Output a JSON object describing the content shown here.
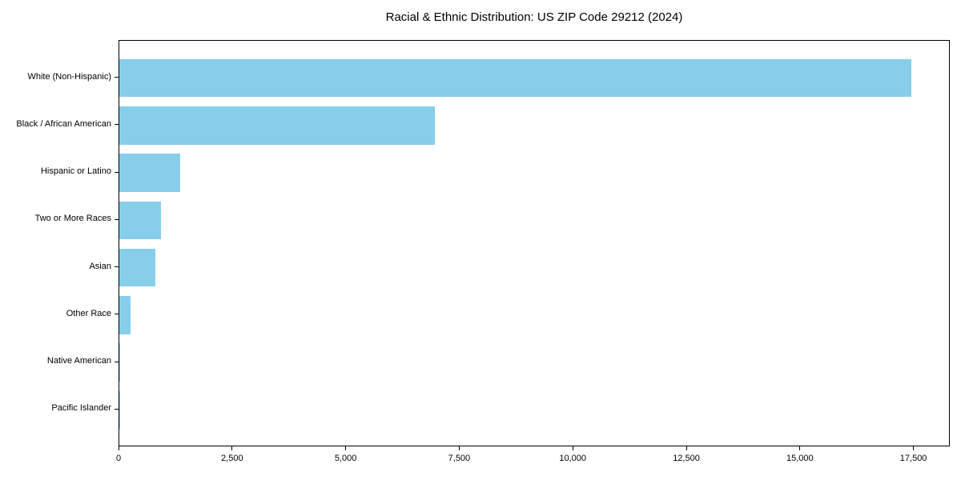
{
  "chart_data": {
    "type": "bar",
    "orientation": "horizontal",
    "title": "Racial & Ethnic Distribution: US ZIP Code 29212 (2024)",
    "categories": [
      "White (Non-Hispanic)",
      "Black / African American",
      "Hispanic or Latino",
      "Two or More Races",
      "Asian",
      "Other Race",
      "Native American",
      "Pacific Islander"
    ],
    "values": [
      17430,
      6950,
      1345,
      920,
      795,
      250,
      25,
      5
    ],
    "xlabel": "",
    "ylabel": "",
    "xlim": [
      0,
      18300
    ],
    "x_ticks": [
      0,
      2500,
      5000,
      7500,
      10000,
      12500,
      15000,
      17500
    ],
    "x_tick_labels": [
      "0",
      "2,500",
      "5,000",
      "7,500",
      "10,000",
      "12,500",
      "15,000",
      "17,500"
    ],
    "bar_color": "#87CEEB",
    "grid": false,
    "legend": null,
    "background_color": "#ffffff",
    "spine_color": "#000000"
  }
}
